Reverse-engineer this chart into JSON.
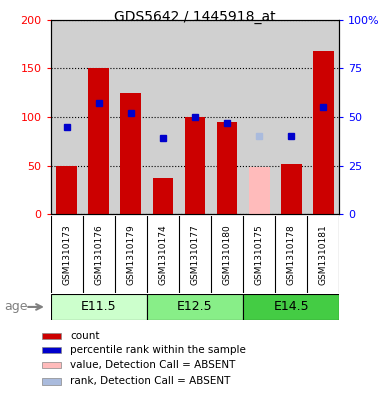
{
  "title": "GDS5642 / 1445918_at",
  "samples": [
    "GSM1310173",
    "GSM1310176",
    "GSM1310179",
    "GSM1310174",
    "GSM1310177",
    "GSM1310180",
    "GSM1310175",
    "GSM1310178",
    "GSM1310181"
  ],
  "count_values": [
    50,
    150,
    125,
    37,
    100,
    95,
    null,
    52,
    168
  ],
  "count_absent": [
    null,
    null,
    null,
    null,
    null,
    null,
    48,
    null,
    null
  ],
  "rank_values": [
    45,
    57,
    52,
    39,
    50,
    47,
    null,
    40,
    55
  ],
  "rank_absent": [
    null,
    null,
    null,
    null,
    null,
    null,
    40,
    null,
    null
  ],
  "ylim_left": [
    0,
    200
  ],
  "ylim_right": [
    0,
    100
  ],
  "yticks_left": [
    0,
    50,
    100,
    150,
    200
  ],
  "yticks_right": [
    0,
    25,
    50,
    75,
    100
  ],
  "ytick_labels_right": [
    "0",
    "25",
    "50",
    "75",
    "100%"
  ],
  "bar_color": "#cc0000",
  "bar_absent_color": "#ffbbbb",
  "rank_color": "#0000cc",
  "rank_absent_color": "#aabbdd",
  "group_defs": [
    {
      "start": 0,
      "end": 3,
      "label": "E11.5",
      "color": "#ccffcc"
    },
    {
      "start": 3,
      "end": 6,
      "label": "E12.5",
      "color": "#88ee88"
    },
    {
      "start": 6,
      "end": 9,
      "label": "E14.5",
      "color": "#44cc44"
    }
  ],
  "legend_labels": [
    "count",
    "percentile rank within the sample",
    "value, Detection Call = ABSENT",
    "rank, Detection Call = ABSENT"
  ],
  "legend_colors": [
    "#cc0000",
    "#0000cc",
    "#ffbbbb",
    "#aabbdd"
  ]
}
